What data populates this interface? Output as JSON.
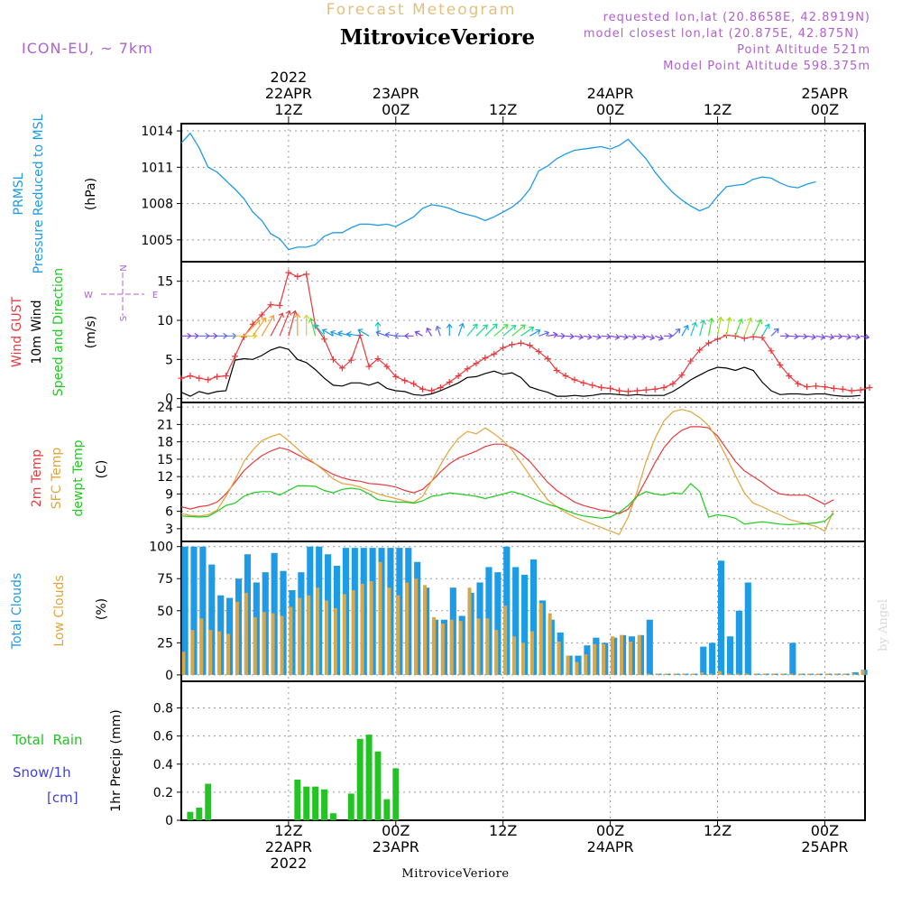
{
  "header": {
    "product": "Forecast Meteogram",
    "station": "MitroviceVeriore",
    "model": "ICON-EU, ~ 7km",
    "requested": "requested lon,lat (20.8658E, 42.8919N)",
    "closest": "model closest lon,lat (20.875E, 42.875N)",
    "point_altitude": "Point Altitude 521m",
    "model_point_altitude": "Model Point Altitude 598.375m",
    "footer_station": "MitroviceVeriore",
    "credit": "by Angel"
  },
  "time_axis": {
    "top": [
      {
        "h": 12,
        "lines": [
          "2022",
          "22APR",
          "12Z"
        ]
      },
      {
        "h": 24,
        "lines": [
          "23APR",
          "00Z"
        ]
      },
      {
        "h": 36,
        "lines": [
          "12Z"
        ]
      },
      {
        "h": 48,
        "lines": [
          "24APR",
          "00Z"
        ]
      },
      {
        "h": 60,
        "lines": [
          "12Z"
        ]
      },
      {
        "h": 72,
        "lines": [
          "25APR",
          "00Z"
        ]
      }
    ],
    "bottom": [
      {
        "h": 12,
        "lines": [
          "12Z",
          "22APR",
          "2022"
        ]
      },
      {
        "h": 24,
        "lines": [
          "00Z",
          "23APR"
        ]
      },
      {
        "h": 36,
        "lines": [
          "12Z"
        ]
      },
      {
        "h": 48,
        "lines": [
          "00Z",
          "24APR"
        ]
      },
      {
        "h": 60,
        "lines": [
          "12Z"
        ]
      },
      {
        "h": 72,
        "lines": [
          "00Z",
          "25APR"
        ]
      }
    ]
  },
  "panels": {
    "pressure": {
      "label1": "PRMSL",
      "label2": "Pressure Reduced to MSL",
      "unit": "(hPa)"
    },
    "wind": {
      "label1": "Wind GUST",
      "label2": "10m Wind",
      "label3": "Speed and Direction",
      "unit": "(m/s)",
      "compass_n": "N",
      "compass_s": "S",
      "compass_w": "W",
      "compass_e": "E"
    },
    "temp": {
      "label1": "2m Temp",
      "label2": "SFC Temp",
      "label3": "dewpt Temp",
      "unit": "(C)"
    },
    "clouds": {
      "label1": "Total Clouds",
      "label2": "Low Clouds",
      "unit": "(%)"
    },
    "precip": {
      "label1": "Total  Rain",
      "label2": "Snow/1h",
      "label3": "[cm]",
      "unit": "1hr Precip (mm)"
    }
  },
  "colors": {
    "pressure": "#1e9be6",
    "gust": "#e8393d",
    "wind": "#000000",
    "t2m": "#e8393d",
    "sfc": "#e2a43a",
    "dewpt": "#1ecc1e",
    "total_clouds": "#1e9be6",
    "low_clouds": "#d8a848",
    "rain": "#22c322",
    "snow": "#4040e0",
    "label_purple": "#b060d0"
  },
  "chart_data": [
    {
      "type": "line",
      "name": "pressure",
      "x_start_hour": 0,
      "x_step_hours": 1,
      "xlim": [
        0,
        76.5
      ],
      "ylim": [
        1003.2,
        1014.6
      ],
      "yticks": [
        1005,
        1008,
        1011,
        1014
      ],
      "series": [
        {
          "values": [
            1013.0,
            1013.8,
            1012.6,
            1011.0,
            1010.6,
            1009.9,
            1009.2,
            1008.4,
            1007.3,
            1006.6,
            1005.5,
            1005.1,
            1004.2,
            1004.4,
            1004.4,
            1004.6,
            1005.3,
            1005.6,
            1005.6,
            1006.0,
            1006.3,
            1006.3,
            1006.2,
            1006.3,
            1006.1,
            1006.5,
            1006.9,
            1007.6,
            1007.9,
            1007.8,
            1007.6,
            1007.3,
            1007.1,
            1006.9,
            1006.6,
            1006.9,
            1007.3,
            1007.7,
            1008.3,
            1009.2,
            1010.7,
            1011.1,
            1011.7,
            1012.1,
            1012.4,
            1012.5,
            1012.6,
            1012.7,
            1012.5,
            1012.8,
            1013.3,
            1012.5,
            1011.7,
            1010.6,
            1009.7,
            1008.9,
            1008.3,
            1007.8,
            1007.4,
            1007.7,
            1008.6,
            1009.4,
            1009.5,
            1009.6,
            1010.0,
            1010.2,
            1010.1,
            1009.7,
            1009.4,
            1009.3,
            1009.6,
            1009.8
          ]
        }
      ]
    },
    {
      "type": "line",
      "name": "wind",
      "x_start_hour": 0,
      "x_step_hours": 1,
      "xlim": [
        0,
        76.5
      ],
      "ylim": [
        -0.5,
        17.5
      ],
      "yticks": [
        0,
        5,
        10,
        15
      ],
      "series": [
        {
          "values": [
            2.6,
            2.9,
            2.6,
            2.4,
            2.8,
            2.9,
            5.4,
            7.9,
            9.5,
            10.7,
            12.0,
            11.9,
            16.1,
            15.6,
            15.9,
            9.3,
            7.6,
            5.0,
            3.9,
            4.9,
            8.1,
            4.1,
            5.1,
            4.1,
            2.8,
            2.3,
            1.9,
            1.2,
            1.0,
            1.4,
            2.1,
            2.9,
            3.8,
            4.5,
            5.2,
            5.7,
            6.5,
            6.9,
            7.1,
            6.8,
            6.0,
            5.1,
            3.6,
            2.9,
            2.4,
            2.0,
            1.7,
            1.4,
            1.3,
            1.0,
            0.9,
            1.0,
            1.1,
            1.2,
            1.4,
            1.9,
            3.0,
            4.8,
            6.2,
            7.1,
            7.6,
            8.1,
            8.0,
            7.7,
            7.9,
            7.8,
            6.1,
            4.3,
            2.9,
            1.9,
            1.5,
            1.6,
            1.5,
            1.3,
            1.2,
            1.0,
            1.1,
            1.4
          ]
        },
        {
          "values": [
            0.8,
            0.3,
            0.9,
            0.6,
            0.9,
            1.0,
            4.9,
            5.1,
            5.0,
            5.5,
            6.2,
            6.6,
            6.3,
            5.0,
            4.6,
            3.7,
            2.6,
            1.7,
            1.6,
            2.0,
            2.0,
            1.7,
            2.1,
            1.3,
            1.0,
            0.9,
            0.5,
            0.4,
            0.6,
            1.0,
            1.5,
            2.0,
            2.7,
            2.8,
            3.2,
            3.5,
            3.1,
            3.3,
            2.7,
            1.5,
            1.1,
            0.8,
            0.3,
            0.3,
            0.4,
            0.3,
            0.4,
            0.6,
            0.6,
            0.5,
            0.4,
            0.5,
            0.4,
            0.4,
            0.4,
            0.9,
            1.6,
            2.4,
            3.0,
            3.6,
            4.0,
            3.9,
            3.6,
            4.0,
            3.6,
            2.1,
            1.0,
            0.5,
            0.6,
            0.6,
            0.5,
            0.6,
            0.6,
            0.4,
            0.3,
            0.3,
            0.4
          ]
        }
      ],
      "wind_direction_arrows": {
        "y_level": 8,
        "angles_deg": [
          90,
          90,
          90,
          90,
          90,
          90,
          90,
          45,
          35,
          30,
          28,
          22,
          15,
          0,
          0,
          -15,
          -40,
          -60,
          -70,
          -75,
          -80,
          -60,
          0,
          -70,
          -80,
          -90,
          -90,
          -60,
          -30,
          -20,
          0,
          20,
          40,
          45,
          45,
          50,
          50,
          50,
          55,
          60,
          70,
          80,
          90,
          95,
          100,
          100,
          100,
          95,
          100,
          100,
          100,
          100,
          105,
          110,
          90,
          45,
          30,
          20,
          15,
          10,
          10,
          10,
          20,
          20,
          25,
          30,
          45,
          90,
          95,
          95,
          100,
          100,
          100,
          95,
          100,
          100,
          100
        ]
      }
    },
    {
      "type": "line",
      "name": "temperature",
      "x_start_hour": 0,
      "x_step_hours": 1,
      "xlim": [
        0,
        76.5
      ],
      "ylim": [
        0.8,
        24.8
      ],
      "yticks": [
        3,
        6,
        9,
        12,
        15,
        18,
        21,
        24
      ],
      "series": [
        {
          "values": [
            6.8,
            6.4,
            6.8,
            7.0,
            7.6,
            9.0,
            11.0,
            13.0,
            14.4,
            15.6,
            16.4,
            17.0,
            16.6,
            15.8,
            15.0,
            14.2,
            13.2,
            12.4,
            11.8,
            11.4,
            11.2,
            10.8,
            10.7,
            10.5,
            10.2,
            9.6,
            9.2,
            9.8,
            11.2,
            12.8,
            14.2,
            15.2,
            15.8,
            16.4,
            17.2,
            17.6,
            17.6,
            17.0,
            16.0,
            14.6,
            12.8,
            11.0,
            9.6,
            8.6,
            7.6,
            7.0,
            6.6,
            6.2,
            6.0,
            5.6,
            6.4,
            8.6,
            11.4,
            14.4,
            17.0,
            18.8,
            20.0,
            20.6,
            20.6,
            20.4,
            19.0,
            16.8,
            14.6,
            13.0,
            12.0,
            11.0,
            9.8,
            9.0,
            8.8,
            8.8,
            8.8,
            8.0,
            7.2,
            8.0
          ]
        },
        {
          "values": [
            5.6,
            5.3,
            5.2,
            5.4,
            6.2,
            8.6,
            11.4,
            14.6,
            16.6,
            18.2,
            18.9,
            19.4,
            18.2,
            16.8,
            15.4,
            14.2,
            13.0,
            11.6,
            10.8,
            10.6,
            10.2,
            9.6,
            9.0,
            8.6,
            8.2,
            7.8,
            7.5,
            8.6,
            11.2,
            14.0,
            16.6,
            18.6,
            19.8,
            19.4,
            20.4,
            19.4,
            18.2,
            16.6,
            14.4,
            12.2,
            10.0,
            8.0,
            6.8,
            5.8,
            5.0,
            4.4,
            3.8,
            3.2,
            2.6,
            2.0,
            5.0,
            9.4,
            14.6,
            18.6,
            21.6,
            23.2,
            23.6,
            23.2,
            22.2,
            20.8,
            18.4,
            15.4,
            12.2,
            9.2,
            7.4,
            6.8,
            6.0,
            5.4,
            4.6,
            4.2,
            3.8,
            3.4,
            2.6,
            6.2
          ]
        },
        {
          "values": [
            5.2,
            5.1,
            5.0,
            5.1,
            6.0,
            7.0,
            7.4,
            8.6,
            9.2,
            9.4,
            9.4,
            8.8,
            9.6,
            10.4,
            10.4,
            10.3,
            9.6,
            9.2,
            9.8,
            10.0,
            9.8,
            9.0,
            8.0,
            7.8,
            7.6,
            7.6,
            7.4,
            7.8,
            8.6,
            8.8,
            9.2,
            9.0,
            8.8,
            8.6,
            8.2,
            8.6,
            9.0,
            9.4,
            9.0,
            8.4,
            7.8,
            7.2,
            6.8,
            6.2,
            5.6,
            5.2,
            5.0,
            4.8,
            5.0,
            5.8,
            7.0,
            8.6,
            9.4,
            9.0,
            8.8,
            9.2,
            9.0,
            10.8,
            9.4,
            5.0,
            5.4,
            5.2,
            4.8,
            3.8,
            4.0,
            4.2,
            4.0,
            3.8,
            3.7,
            3.8,
            3.9,
            4.0,
            4.3,
            5.6
          ]
        }
      ]
    },
    {
      "type": "bar",
      "name": "clouds",
      "x_start_hour": 0,
      "x_step_hours": 1,
      "xlim": [
        0,
        76.5
      ],
      "ylim": [
        -5,
        104
      ],
      "yticks": [
        0,
        25,
        50,
        75,
        100
      ],
      "series": [
        {
          "values": [
            100,
            100,
            100,
            86,
            62,
            60,
            75,
            94,
            72,
            80,
            95,
            81,
            66,
            80,
            100,
            100,
            94,
            85,
            99,
            99,
            99,
            99,
            99,
            99,
            99,
            99,
            88,
            68,
            43,
            43,
            68,
            46,
            64,
            72,
            84,
            80,
            100,
            84,
            78,
            90,
            58,
            43,
            33,
            15,
            15,
            23,
            29,
            25,
            29,
            31,
            30,
            31,
            43,
            1,
            1,
            1,
            1,
            1,
            22,
            25,
            89,
            30,
            50,
            72,
            1,
            1,
            1,
            1,
            25,
            1,
            1,
            1,
            1,
            1,
            1,
            2,
            4
          ]
        },
        {
          "values": [
            18,
            35,
            44,
            35,
            34,
            32,
            57,
            64,
            45,
            49,
            48,
            46,
            53,
            60,
            62,
            68,
            58,
            52,
            63,
            66,
            71,
            73,
            88,
            68,
            62,
            72,
            75,
            70,
            45,
            40,
            43,
            42,
            68,
            44,
            44,
            35,
            54,
            30,
            25,
            34,
            56,
            48,
            26,
            15,
            10,
            16,
            24,
            24,
            30,
            31,
            26,
            31,
            1,
            1,
            1,
            1,
            1,
            1,
            2,
            1,
            3,
            1,
            1,
            1,
            1,
            1,
            1,
            1,
            1,
            1,
            1,
            1,
            1,
            1,
            1,
            1,
            4
          ]
        }
      ]
    },
    {
      "type": "bar",
      "name": "precipitation",
      "x_start_hour": 0,
      "x_step_hours": 1,
      "xlim": [
        0,
        76.5
      ],
      "ylim": [
        0,
        0.99
      ],
      "yticks": [
        0,
        0.2,
        0.4,
        0.6,
        0.8
      ],
      "bars": [
        {
          "hour": 1,
          "value": 0.06
        },
        {
          "hour": 2,
          "value": 0.09
        },
        {
          "hour": 3,
          "value": 0.26
        },
        {
          "hour": 13,
          "value": 0.29
        },
        {
          "hour": 14,
          "value": 0.24
        },
        {
          "hour": 15,
          "value": 0.24
        },
        {
          "hour": 16,
          "value": 0.22
        },
        {
          "hour": 17,
          "value": 0.05
        },
        {
          "hour": 19,
          "value": 0.19
        },
        {
          "hour": 20,
          "value": 0.58
        },
        {
          "hour": 21,
          "value": 0.61
        },
        {
          "hour": 22,
          "value": 0.49
        },
        {
          "hour": 23,
          "value": 0.15
        },
        {
          "hour": 24,
          "value": 0.37
        }
      ]
    }
  ]
}
